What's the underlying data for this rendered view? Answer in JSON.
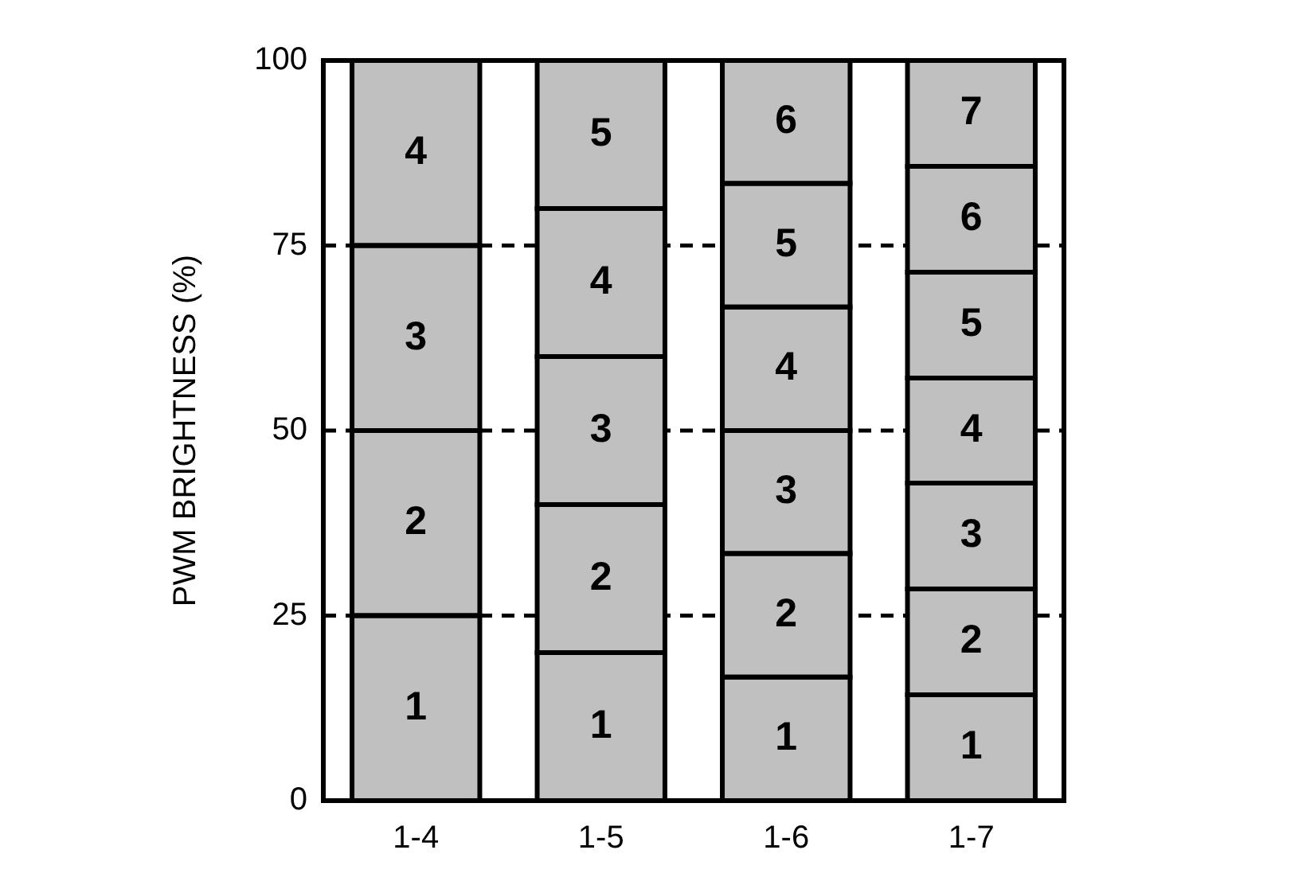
{
  "chart_data": {
    "type": "bar",
    "stacked": true,
    "ylabel": "PWM BRIGHTNESS (%)",
    "categories": [
      "1-4",
      "1-5",
      "1-6",
      "1-7"
    ],
    "ylim": [
      0,
      100
    ],
    "yticks": [
      0,
      25,
      50,
      75,
      100
    ],
    "grid": "y",
    "series": [
      {
        "name": "1",
        "color": "#c0c0c0",
        "values": [
          25,
          20,
          16.7,
          14.3
        ]
      },
      {
        "name": "2",
        "color": "#c0c0c0",
        "values": [
          25,
          20,
          16.7,
          14.3
        ]
      },
      {
        "name": "3",
        "color": "#c0c0c0",
        "values": [
          25,
          20,
          16.6,
          14.3
        ]
      },
      {
        "name": "4",
        "color": "#c0c0c0",
        "values": [
          25,
          20,
          16.7,
          14.2
        ]
      },
      {
        "name": "5",
        "color": "#c0c0c0",
        "values": [
          null,
          20,
          16.7,
          14.3
        ]
      },
      {
        "name": "6",
        "color": "#c0c0c0",
        "values": [
          null,
          null,
          16.6,
          14.3
        ]
      },
      {
        "name": "7",
        "color": "#c0c0c0",
        "values": [
          null,
          null,
          null,
          14.3
        ]
      }
    ]
  }
}
